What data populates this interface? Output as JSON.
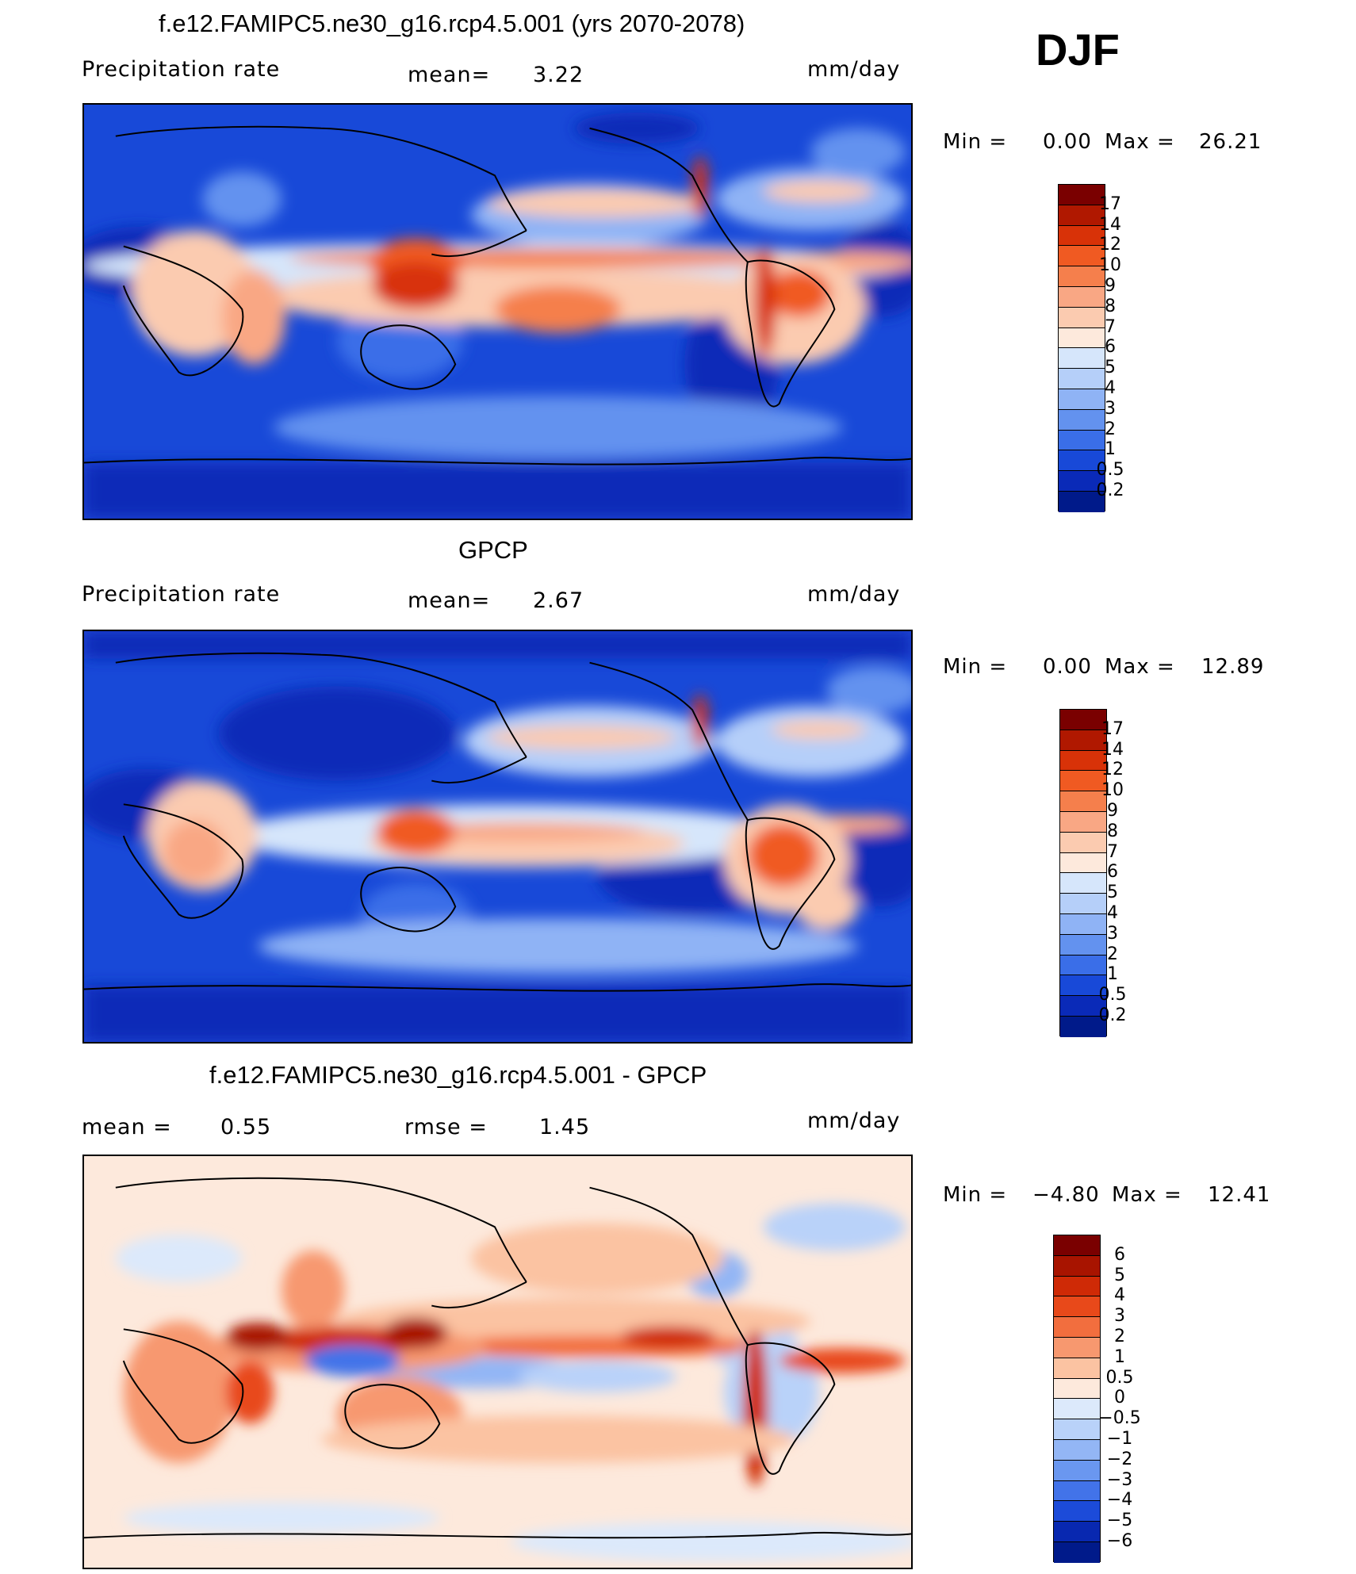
{
  "season": "DJF",
  "panels": [
    {
      "title": "f.e12.FAMIPC5.ne30_g16.rcp4.5.001 (yrs 2070-2078)",
      "variable": "Precipitation rate",
      "mean_label": "mean=",
      "mean_value": "3.22",
      "units": "mm/day",
      "min_label": "Min =",
      "min_value": "0.00",
      "max_label": "Max =",
      "max_value": "26.21",
      "colorbar": {
        "labels": [
          "17",
          "14",
          "12",
          "10",
          "9",
          "8",
          "7",
          "6",
          "5",
          "4",
          "3",
          "2",
          "1",
          "0.5",
          "0.2"
        ],
        "colors": [
          "#7a0000",
          "#b01800",
          "#d83208",
          "#f05a22",
          "#f57f4c",
          "#f9a784",
          "#fbcbb0",
          "#fde9dc",
          "#d6e6fb",
          "#b5cff9",
          "#8fb3f5",
          "#6392ef",
          "#3a6ee8",
          "#1849d8",
          "#0a2ab8",
          "#001a8a"
        ]
      }
    },
    {
      "title": "GPCP",
      "variable": "Precipitation rate",
      "mean_label": "mean=",
      "mean_value": "2.67",
      "units": "mm/day",
      "min_label": "Min =",
      "min_value": "0.00",
      "max_label": "Max =",
      "max_value": "12.89",
      "colorbar": {
        "labels": [
          "17",
          "14",
          "12",
          "10",
          "9",
          "8",
          "7",
          "6",
          "5",
          "4",
          "3",
          "2",
          "1",
          "0.5",
          "0.2"
        ],
        "colors": [
          "#7a0000",
          "#b01800",
          "#d83208",
          "#f05a22",
          "#f57f4c",
          "#f9a784",
          "#fbcbb0",
          "#fde9dc",
          "#d6e6fb",
          "#b5cff9",
          "#8fb3f5",
          "#6392ef",
          "#3a6ee8",
          "#1849d8",
          "#0a2ab8",
          "#001a8a"
        ]
      }
    },
    {
      "title": "f.e12.FAMIPC5.ne30_g16.rcp4.5.001 - GPCP",
      "mean_label": "mean =",
      "mean_value": "0.55",
      "rmse_label": "rmse =",
      "rmse_value": "1.45",
      "units": "mm/day",
      "min_label": "Min =",
      "min_value": "−4.80",
      "max_label": "Max =",
      "max_value": "12.41",
      "colorbar": {
        "labels": [
          "6",
          "5",
          "4",
          "3",
          "2",
          "1",
          "0.5",
          "0",
          "−0.5",
          "−1",
          "−2",
          "−3",
          "−4",
          "−5",
          "−6"
        ],
        "colors": [
          "#7a0000",
          "#a81400",
          "#cf2a06",
          "#e8491a",
          "#f26e3e",
          "#f7986f",
          "#fbc3a2",
          "#fde9dc",
          "#dce9fb",
          "#b9d2f9",
          "#93b6f5",
          "#6a97f0",
          "#4273e9",
          "#1c4bd9",
          "#0828b0",
          "#001a8a"
        ]
      }
    }
  ]
}
